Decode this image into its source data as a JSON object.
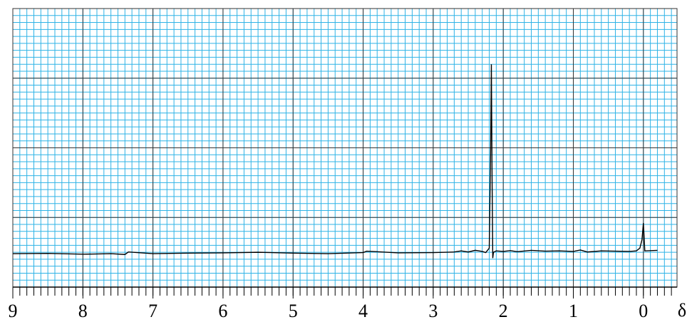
{
  "chart_data": {
    "type": "line",
    "axis_label": "δ",
    "x": [
      9.0,
      8.5,
      8.0,
      7.6,
      7.4,
      7.35,
      7.0,
      6.5,
      6.0,
      5.5,
      5.0,
      4.5,
      4.0,
      3.95,
      3.5,
      3.0,
      2.7,
      2.6,
      2.5,
      2.4,
      2.3,
      2.25,
      2.2,
      2.18,
      2.17,
      2.16,
      2.15,
      2.14,
      2.1,
      2.0,
      1.9,
      1.8,
      1.6,
      1.4,
      1.2,
      1.0,
      0.9,
      0.8,
      0.6,
      0.4,
      0.2,
      0.1,
      0.05,
      0.02,
      0.0,
      -0.02,
      -0.2
    ],
    "values": [
      12.0,
      12.1,
      11.8,
      12.0,
      11.7,
      12.6,
      12.0,
      12.2,
      12.3,
      12.5,
      12.2,
      12.0,
      12.4,
      12.9,
      12.3,
      12.4,
      12.6,
      13.0,
      12.6,
      13.2,
      12.8,
      12.4,
      14,
      50,
      80,
      40,
      10.4,
      12.5,
      13.0,
      12.8,
      13.1,
      12.7,
      13.2,
      12.9,
      13.0,
      12.8,
      13.3,
      12.6,
      13.0,
      12.9,
      12.8,
      13.0,
      14,
      17,
      23,
      13.0,
      13.2
    ],
    "color": "#000000",
    "xlim": [
      9,
      -0.48
    ],
    "xticks": [
      9,
      8,
      7,
      6,
      5,
      4,
      3,
      2,
      1,
      0
    ],
    "ylim": [
      0,
      100
    ],
    "yticks": [
      0,
      25,
      50,
      75,
      100
    ],
    "grid": true
  }
}
